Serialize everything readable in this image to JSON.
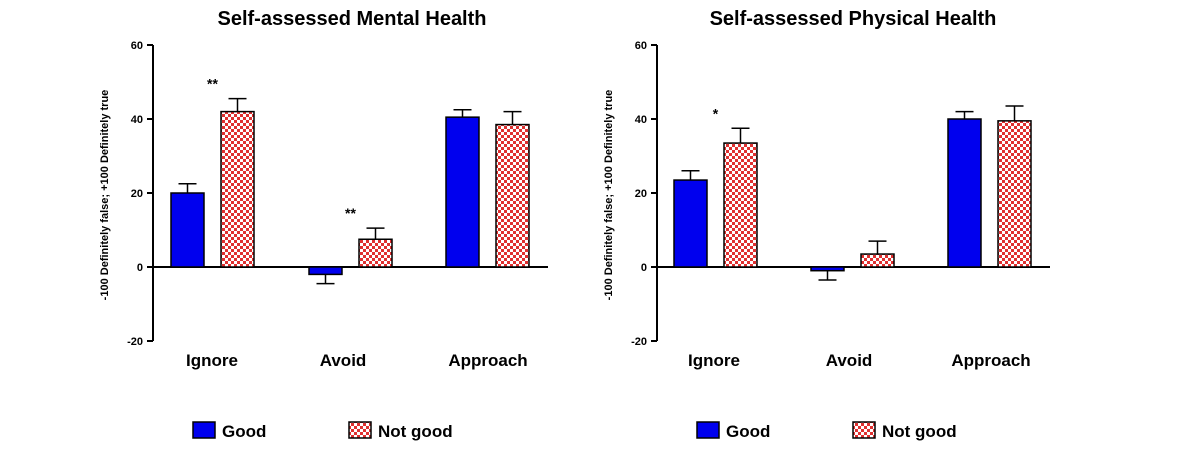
{
  "colors": {
    "good": "#0000ee",
    "not_good_check": "#e03030",
    "axis": "#000000"
  },
  "legend": [
    {
      "key": "good",
      "label": "Good"
    },
    {
      "key": "not_good",
      "label": "Not good"
    }
  ],
  "chart_data": [
    {
      "type": "bar",
      "title": "Self-assessed Mental Health",
      "xlabel": "",
      "ylabel": "-100 Definitely false; +100 Definitely true",
      "ylim": [
        -20,
        60
      ],
      "yticks": [
        -20,
        0,
        20,
        40,
        60
      ],
      "categories": [
        "Ignore",
        "Avoid",
        "Approach"
      ],
      "series": [
        {
          "name": "Good",
          "values": [
            20,
            -2,
            40.5
          ],
          "error": [
            2.5,
            2.5,
            2
          ]
        },
        {
          "name": "Not good",
          "values": [
            42,
            7.5,
            38.5
          ],
          "error": [
            3.5,
            3,
            3.5
          ]
        }
      ],
      "annotations": [
        {
          "category": "Ignore",
          "text": "**"
        },
        {
          "category": "Avoid",
          "text": "**"
        }
      ]
    },
    {
      "type": "bar",
      "title": "Self-assessed Physical Health",
      "xlabel": "",
      "ylabel": "-100 Definitely false; +100 Definitely true",
      "ylim": [
        -20,
        60
      ],
      "yticks": [
        -20,
        0,
        20,
        40,
        60
      ],
      "categories": [
        "Ignore",
        "Avoid",
        "Approach"
      ],
      "series": [
        {
          "name": "Good",
          "values": [
            23.5,
            -1,
            40
          ],
          "error": [
            2.5,
            2.5,
            2
          ]
        },
        {
          "name": "Not good",
          "values": [
            33.5,
            3.5,
            39.5
          ],
          "error": [
            4,
            3.5,
            4
          ]
        }
      ],
      "annotations": [
        {
          "category": "Ignore",
          "text": "*"
        }
      ]
    }
  ]
}
